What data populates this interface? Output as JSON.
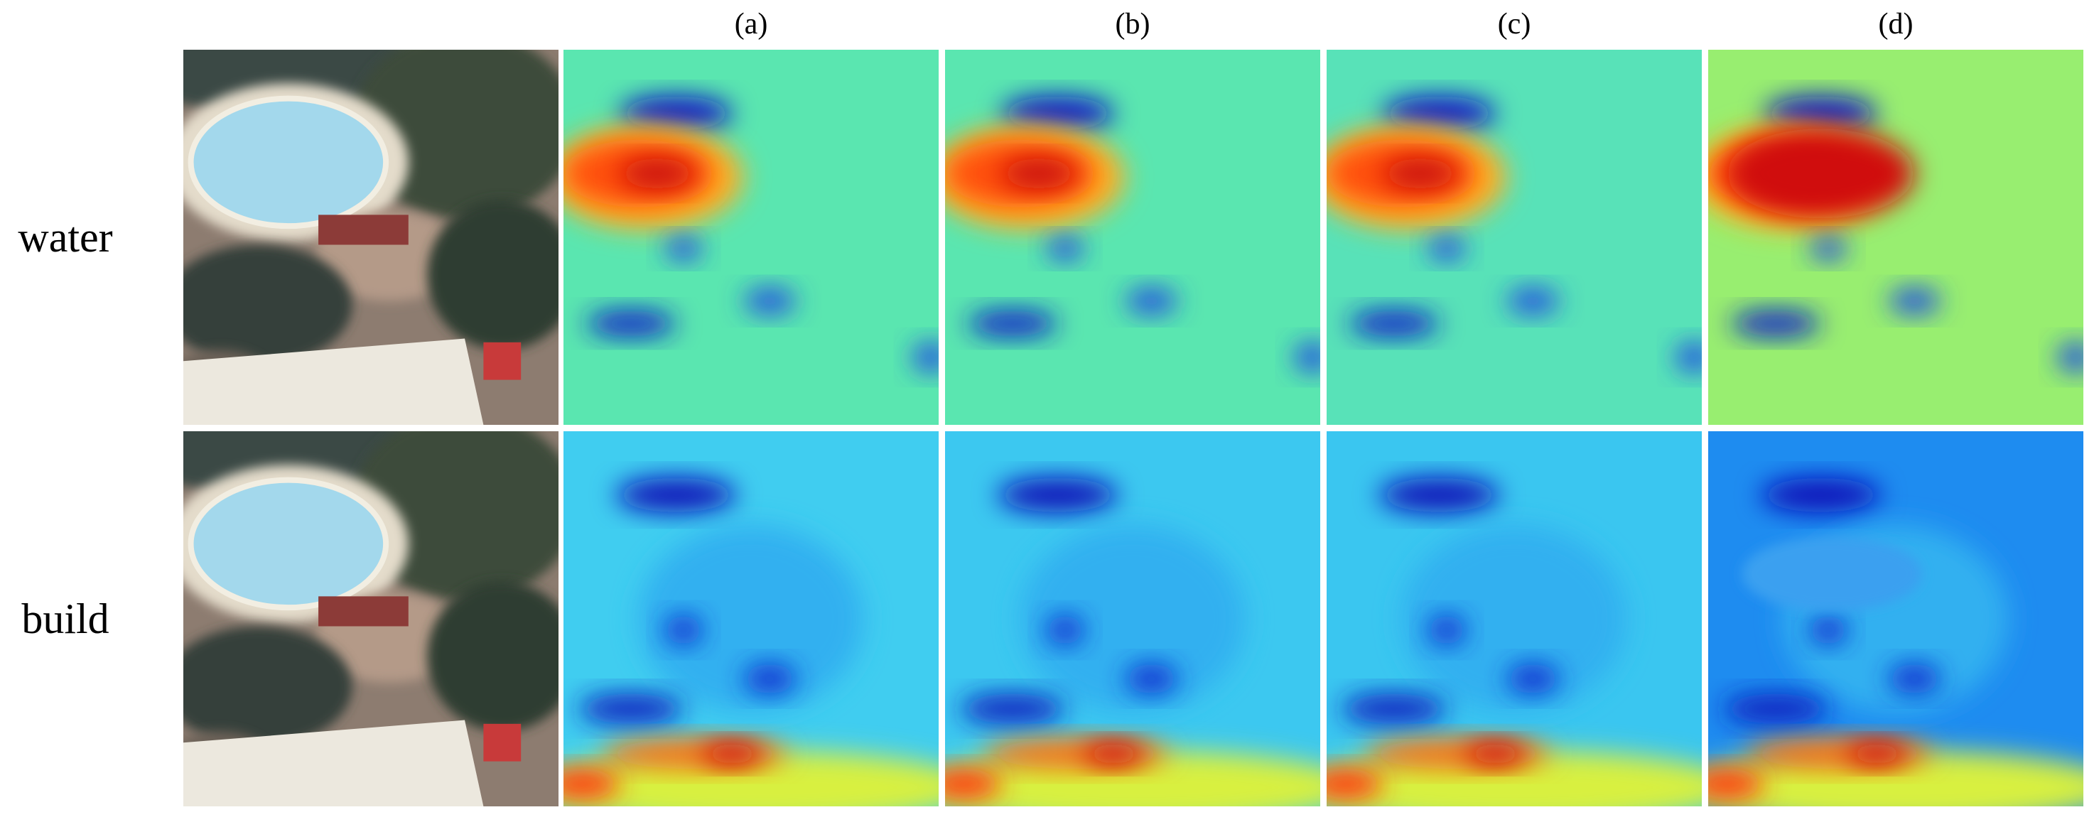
{
  "columns": [
    "(a)",
    "(b)",
    "(c)",
    "(d)"
  ],
  "rows": [
    "water",
    "build"
  ]
}
